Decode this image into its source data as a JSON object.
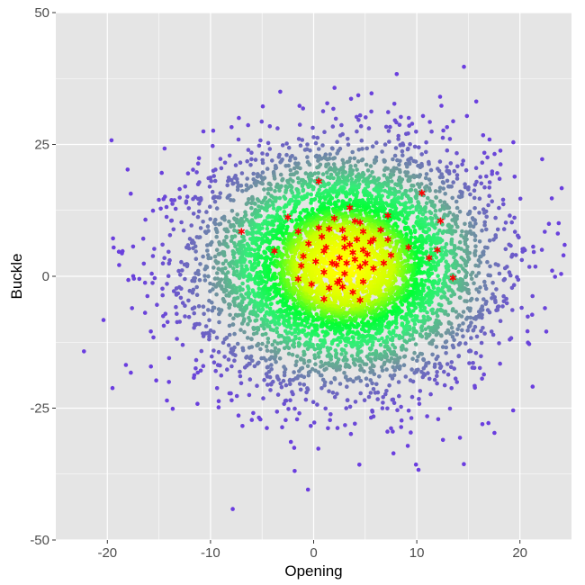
{
  "chart_data": {
    "type": "scatter",
    "xlabel": "Opening",
    "ylabel": "Buckle",
    "xlim": [
      -25,
      25
    ],
    "ylim": [
      -50,
      50
    ],
    "x_ticks": [
      -20,
      -10,
      0,
      10,
      20
    ],
    "y_ticks": [
      -50,
      -25,
      0,
      25,
      50
    ],
    "x_tick_labels": [
      "-20",
      "-10",
      "0",
      "10",
      "20"
    ],
    "y_tick_labels": [
      "-50",
      "-25",
      "0",
      "25",
      "50"
    ],
    "grid": true,
    "legend": "none",
    "background_color": "#e5e5e5",
    "grid_color": "#ffffff",
    "density_color_scale": [
      "#6a3ce0",
      "#6f9a9a",
      "#33ee77",
      "#00ff33",
      "#c8ff00",
      "#ffff00"
    ],
    "cloud": {
      "description_of_distribution": "dense bivariate cloud colored by local density",
      "center": [
        3,
        2
      ],
      "sd": [
        7,
        11
      ],
      "n_points": 6000
    },
    "highlighted_series": {
      "marker": "asterisk",
      "color": "#ff0000",
      "points": [
        [
          0.5,
          18.0
        ],
        [
          10.5,
          15.8
        ],
        [
          -2.5,
          11.2
        ],
        [
          3.5,
          13.0
        ],
        [
          7.2,
          11.5
        ],
        [
          2.0,
          11.0
        ],
        [
          4.0,
          10.5
        ],
        [
          4.5,
          10.2
        ],
        [
          12.3,
          10.5
        ],
        [
          -7.0,
          8.5
        ],
        [
          -1.5,
          8.5
        ],
        [
          0.5,
          9.2
        ],
        [
          1.5,
          9.0
        ],
        [
          2.8,
          8.8
        ],
        [
          4.8,
          8.5
        ],
        [
          6.5,
          8.8
        ],
        [
          0.8,
          7.5
        ],
        [
          3.0,
          7.2
        ],
        [
          4.2,
          7.0
        ],
        [
          5.8,
          7.0
        ],
        [
          7.2,
          7.0
        ],
        [
          -0.5,
          6.2
        ],
        [
          1.2,
          5.5
        ],
        [
          3.0,
          5.5
        ],
        [
          4.8,
          5.0
        ],
        [
          9.2,
          5.5
        ],
        [
          12.0,
          5.0
        ],
        [
          -3.8,
          4.8
        ],
        [
          1.0,
          4.8
        ],
        [
          3.8,
          4.5
        ],
        [
          5.2,
          4.2
        ],
        [
          7.5,
          4.0
        ],
        [
          -1.0,
          3.8
        ],
        [
          2.5,
          3.5
        ],
        [
          4.0,
          3.2
        ],
        [
          11.2,
          3.5
        ],
        [
          0.2,
          2.8
        ],
        [
          1.8,
          2.5
        ],
        [
          3.2,
          2.5
        ],
        [
          5.0,
          2.5
        ],
        [
          6.8,
          2.5
        ],
        [
          -1.2,
          2.0
        ],
        [
          2.2,
          2.2
        ],
        [
          4.5,
          1.8
        ],
        [
          5.8,
          1.5
        ],
        [
          1.0,
          0.8
        ],
        [
          3.0,
          0.5
        ],
        [
          -1.5,
          -0.5
        ],
        [
          2.5,
          -0.8
        ],
        [
          4.8,
          -1.0
        ],
        [
          13.5,
          -0.3
        ],
        [
          -0.2,
          -1.5
        ],
        [
          1.5,
          -2.2
        ],
        [
          2.8,
          -2.0
        ],
        [
          3.8,
          -3.0
        ],
        [
          1.0,
          -4.3
        ],
        [
          4.5,
          -4.5
        ],
        [
          2.3,
          -1.2
        ],
        [
          3.5,
          6.0
        ],
        [
          5.5,
          6.5
        ]
      ]
    }
  }
}
